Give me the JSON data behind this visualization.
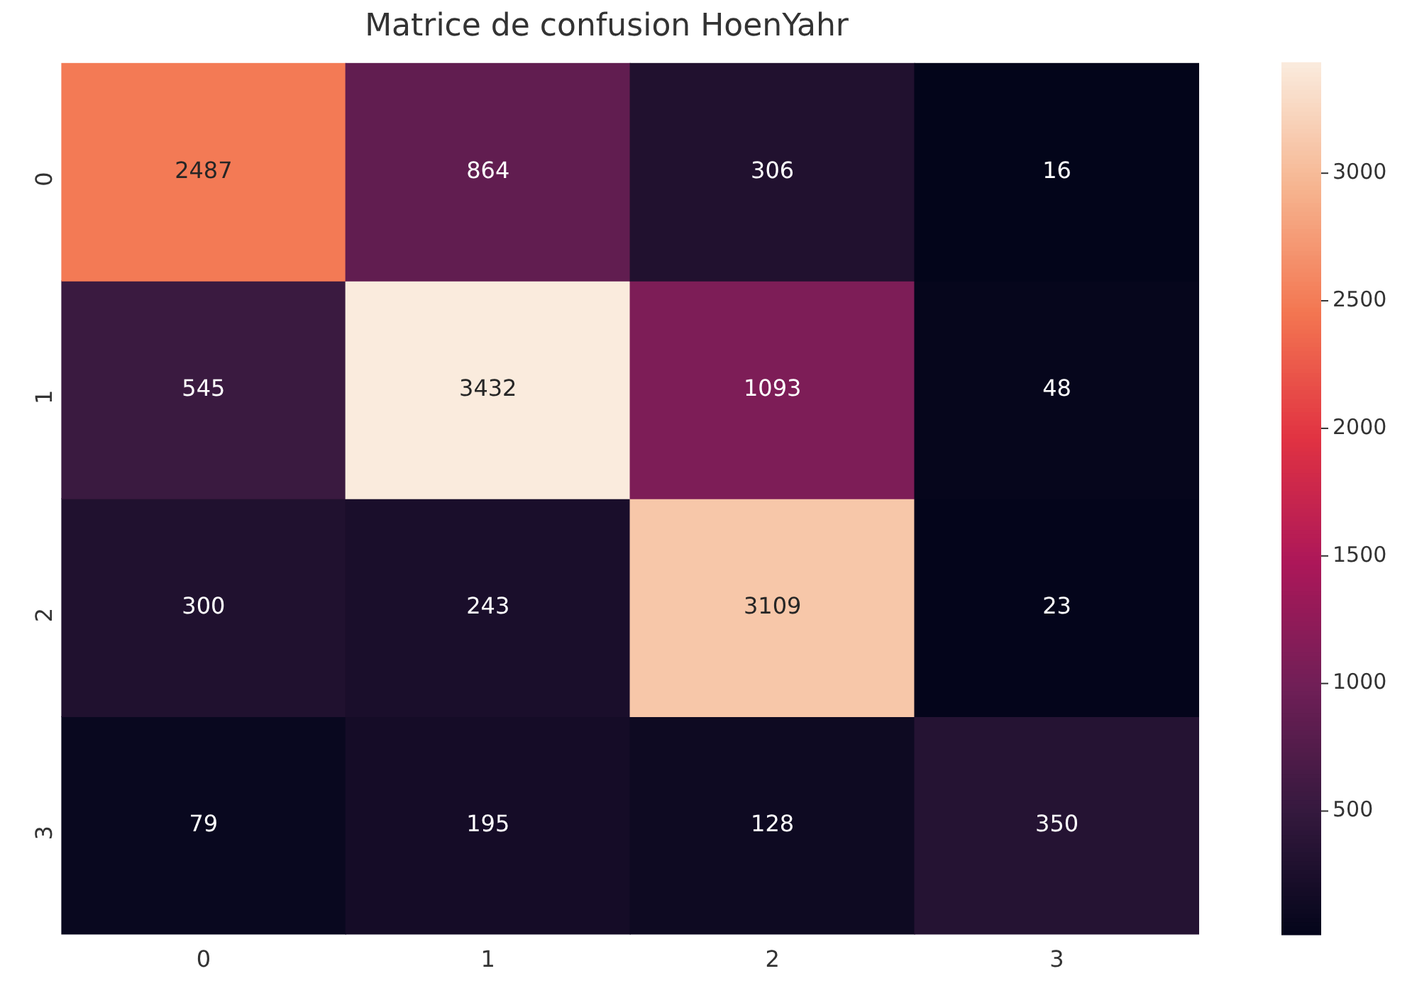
{
  "chart_data": {
    "type": "heatmap",
    "title": "Matrice de confusion HoenYahr",
    "categories": [
      "0",
      "1",
      "2",
      "3"
    ],
    "y_categories": [
      "0",
      "1",
      "2",
      "3"
    ],
    "cells": [
      [
        2487,
        864,
        306,
        16
      ],
      [
        545,
        3432,
        1093,
        48
      ],
      [
        300,
        243,
        3109,
        23
      ],
      [
        79,
        195,
        128,
        350
      ]
    ],
    "clim": [
      16,
      3432
    ],
    "cticks": [
      500,
      1000,
      1500,
      2000,
      2500,
      3000
    ],
    "data_labels": true
  }
}
